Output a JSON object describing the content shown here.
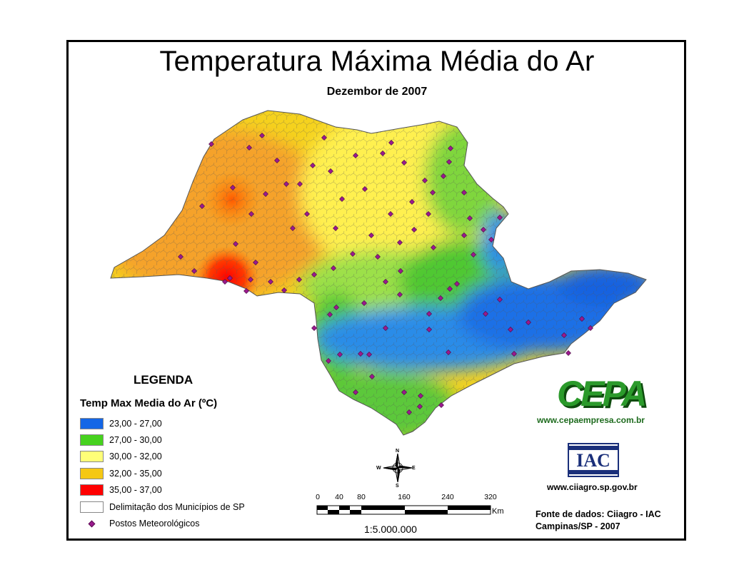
{
  "title": "Temperatura Máxima Média do Ar",
  "subtitle": "Dezembor de 2007",
  "legend": {
    "heading": "LEGENDA",
    "subheading": "Temp Max Media do Ar (ºC)",
    "items": [
      {
        "label": "23,00 - 27,00",
        "color": "#1466e6"
      },
      {
        "label": "27,00 - 30,00",
        "color": "#46d21e"
      },
      {
        "label": "30,00 - 32,00",
        "color": "#ffff78"
      },
      {
        "label": "32,00 - 35,00",
        "color": "#f5c814"
      },
      {
        "label": "35,00 - 37,00",
        "color": "#ff0000"
      },
      {
        "label": "Delimitação dos Municípios de SP",
        "color": "#ffffff"
      },
      {
        "label": "Postos Meteorológicos",
        "color": "#9a1a8e"
      }
    ]
  },
  "scale": {
    "ticks": [
      "0",
      "40",
      "80",
      "160",
      "240",
      "320"
    ],
    "unit": "Km",
    "ratio": "1:5.000.000"
  },
  "compass": {
    "n": "N",
    "s": "S",
    "e": "E",
    "w": "W"
  },
  "logos": {
    "cepa_text": "CEPA",
    "cepa_url": "www.cepaempresa.com.br",
    "iac_text": "IAC",
    "iac_url": "www.ciiagro.sp.gov.br"
  },
  "source": {
    "line1": "Fonte de dados: Ciiagro - IAC",
    "line2": "Campinas/SP - 2007"
  }
}
